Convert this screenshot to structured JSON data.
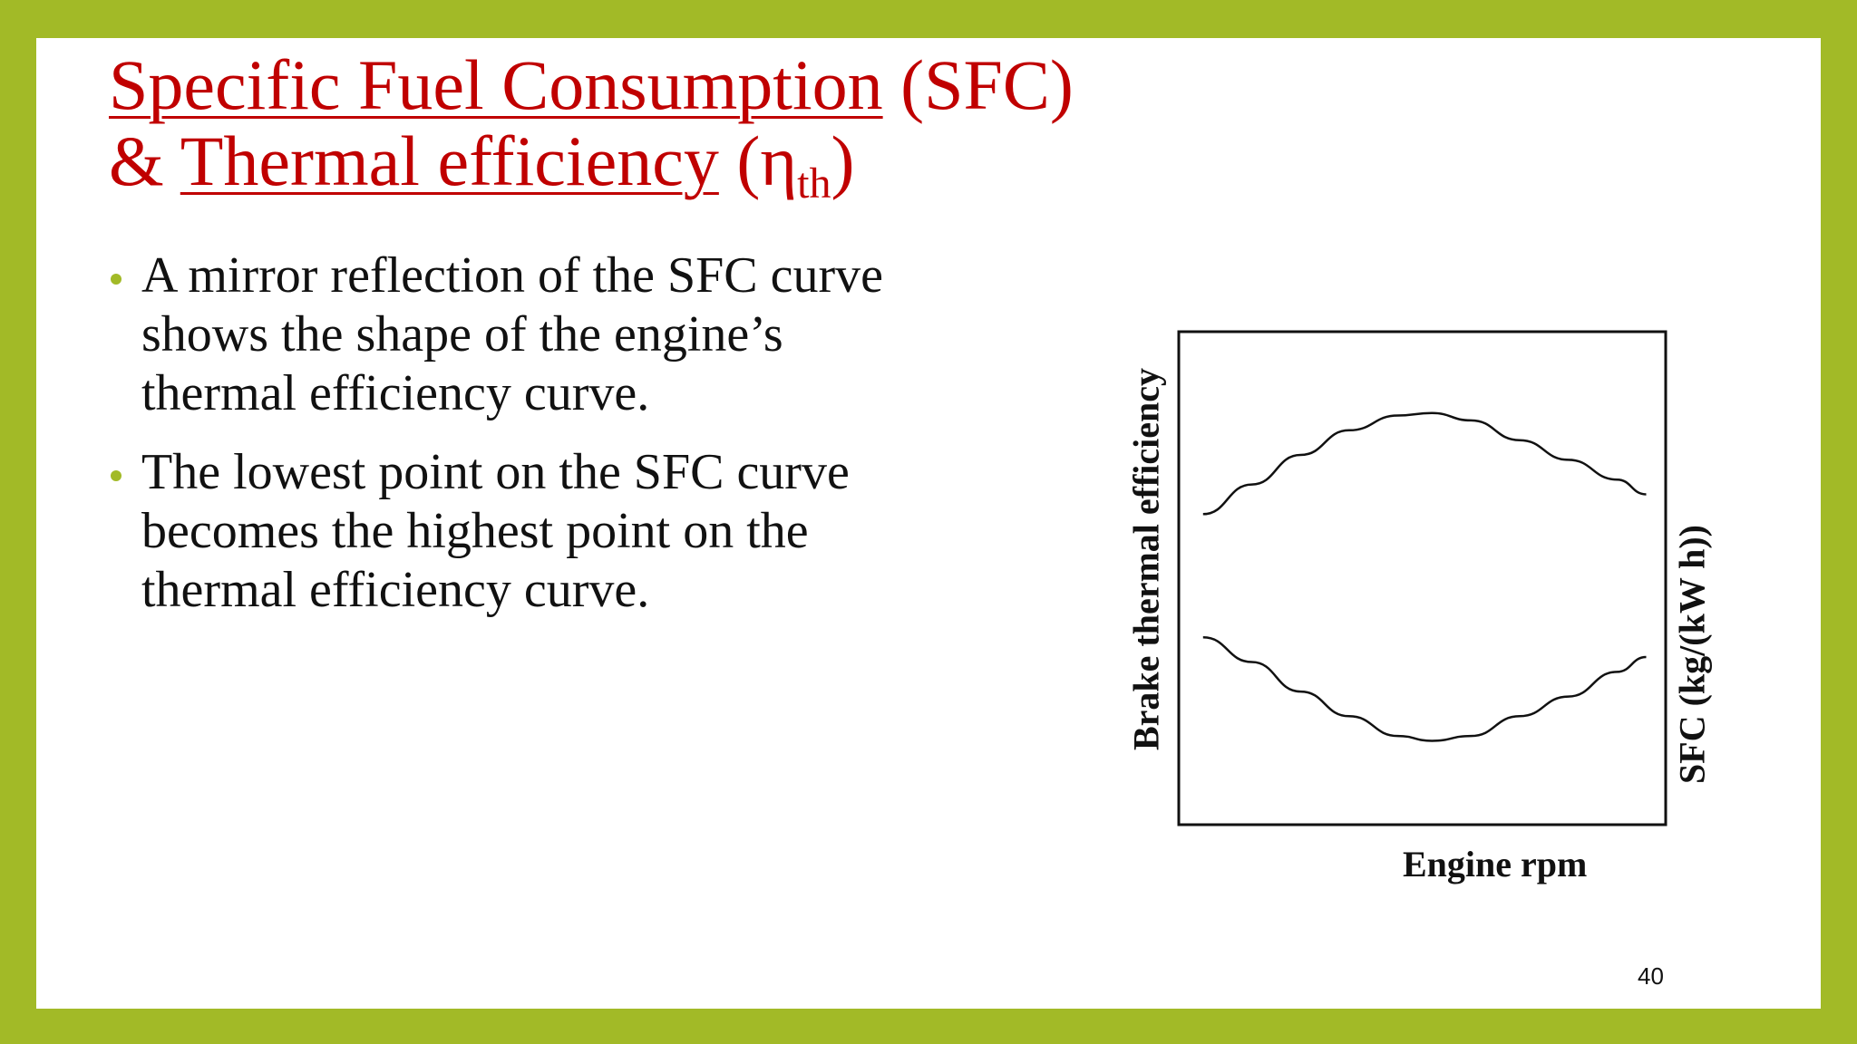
{
  "slide": {
    "title_line1_underlined": "Specific Fuel Consumption",
    "title_line1_rest": " (SFC)",
    "title_line2_prefix": "& ",
    "title_line2_underlined": "Thermal efficiency",
    "title_line2_eta": " (η",
    "title_line2_sub": "th",
    "title_line2_close": ")",
    "bullets": [
      "A mirror reflection of the SFC curve shows the shape of the engine’s thermal efficiency curve.",
      "The lowest point on the SFC curve becomes the highest point on the thermal efficiency curve."
    ],
    "page_number": "40",
    "accent_color": "#a2ba27",
    "title_color": "#c00000"
  },
  "chart_data": {
    "type": "line",
    "title": "",
    "xlabel": "Engine rpm",
    "ylabel_left": "Brake thermal efficiency",
    "ylabel_right": "SFC (kg/(kW h))",
    "x": [
      0.05,
      0.15,
      0.25,
      0.35,
      0.45,
      0.52,
      0.6,
      0.7,
      0.8,
      0.9,
      0.96
    ],
    "xlim": [
      0,
      1
    ],
    "ylim": [
      0,
      1
    ],
    "series": [
      {
        "values": [
          0.63,
          0.69,
          0.75,
          0.8,
          0.83,
          0.835,
          0.82,
          0.78,
          0.74,
          0.7,
          0.67
        ]
      },
      {
        "values": [
          0.38,
          0.33,
          0.27,
          0.22,
          0.18,
          0.17,
          0.18,
          0.22,
          0.26,
          0.31,
          0.34
        ]
      }
    ],
    "grid": false,
    "legend": "none"
  }
}
